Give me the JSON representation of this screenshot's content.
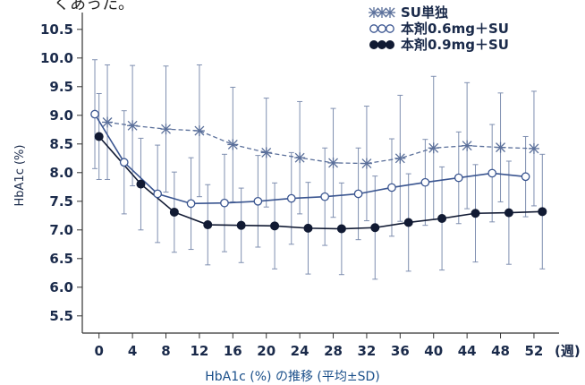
{
  "header_fragment": "くあった。",
  "caption": "HbA1c (%) の推移 (平均±SD)",
  "chart_data": {
    "type": "line",
    "title": "",
    "ylabel": "HbA1c (%)",
    "xunit": "(週)",
    "ylim": [
      5.2,
      10.7
    ],
    "xlim": [
      -2,
      55
    ],
    "yticks": [
      "5.5",
      "6.0",
      "6.5",
      "7.0",
      "7.5",
      "8.0",
      "8.5",
      "9.0",
      "9.5",
      "10.0",
      "10.5"
    ],
    "xticks": [
      "0",
      "4",
      "8",
      "12",
      "16",
      "20",
      "24",
      "28",
      "32",
      "36",
      "40",
      "44",
      "48",
      "52"
    ],
    "legend_position": "top-right",
    "series": [
      {
        "name": "SU単独",
        "marker": "asterisk",
        "line": "dashed",
        "color": "#5a6f9a",
        "x": [
          1,
          4,
          8,
          12,
          16,
          20,
          24,
          28,
          32,
          36,
          40,
          44,
          48,
          52
        ],
        "values": [
          8.88,
          8.82,
          8.76,
          8.73,
          8.49,
          8.35,
          8.26,
          8.17,
          8.16,
          8.25,
          8.43,
          8.47,
          8.44,
          8.42
        ],
        "sd": [
          1.0,
          1.05,
          1.1,
          1.15,
          1.0,
          0.95,
          0.98,
          0.95,
          1.0,
          1.1,
          1.25,
          1.1,
          0.95,
          1.0
        ]
      },
      {
        "name": "本剤0.6mg＋SU",
        "marker": "open-circle",
        "line": "solid",
        "color": "#3a5590",
        "x": [
          -0.5,
          3,
          7,
          11,
          15,
          19,
          23,
          27,
          31,
          35,
          39,
          43,
          47,
          51
        ],
        "values": [
          9.02,
          8.18,
          7.63,
          7.46,
          7.47,
          7.5,
          7.55,
          7.58,
          7.63,
          7.74,
          7.83,
          7.91,
          7.99,
          7.93
        ],
        "sd": [
          0.95,
          0.9,
          0.85,
          0.8,
          0.85,
          0.8,
          0.8,
          0.85,
          0.8,
          0.85,
          0.75,
          0.8,
          0.85,
          0.7
        ]
      },
      {
        "name": "本剤0.9mg＋SU",
        "marker": "filled-circle",
        "line": "solid",
        "color": "#111a33",
        "x": [
          0,
          5,
          9,
          13,
          17,
          21,
          25,
          29,
          33,
          37,
          41,
          45,
          49,
          53
        ],
        "values": [
          8.63,
          7.8,
          7.31,
          7.09,
          7.08,
          7.07,
          7.03,
          7.02,
          7.04,
          7.13,
          7.2,
          7.29,
          7.3,
          7.32
        ],
        "sd": [
          0.75,
          0.8,
          0.7,
          0.7,
          0.65,
          0.75,
          0.8,
          0.8,
          0.9,
          0.85,
          0.9,
          0.85,
          0.9,
          1.0
        ]
      }
    ]
  }
}
